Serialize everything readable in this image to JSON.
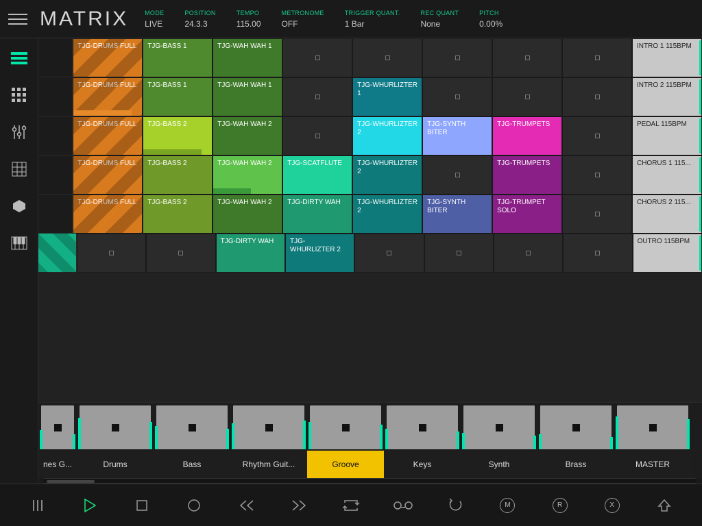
{
  "app_title": "MATRIX",
  "status": [
    {
      "label": "MODE",
      "value": "LIVE"
    },
    {
      "label": "POSITION",
      "value": "24.3.3"
    },
    {
      "label": "TEMPO",
      "value": "115.00"
    },
    {
      "label": "METRONOME",
      "value": "OFF"
    },
    {
      "label": "TRIGGER QUANT.",
      "value": "1 Bar"
    },
    {
      "label": "REC QUANT",
      "value": "None"
    },
    {
      "label": "PITCH",
      "value": "0.00%"
    }
  ],
  "accent": "#00e6a8",
  "scenes": [
    {
      "label": "INTRO 1 115BPM"
    },
    {
      "label": "INTRO 2 115BPM"
    },
    {
      "label": "PEDAL 115BPM"
    },
    {
      "label": "CHORUS 1 115..."
    },
    {
      "label": "CHORUS 2 115..."
    },
    {
      "label": "OUTRO 115BPM"
    }
  ],
  "colors": {
    "drums": "#d87a1e",
    "drums_dark": "#b25f10",
    "bass1": "#4f8a2f",
    "bass2": "#a6d12b",
    "bass2b": "#6f9a2a",
    "wah": "#3f7a2a",
    "wah_hi": "#5fc24a",
    "scat": "#1fd19a",
    "dirty": "#1f9a70",
    "whurl1": "#0f7a88",
    "whurl_cy": "#22d7e6",
    "whurl2": "#0f7a7a",
    "synth": "#8fa6ff",
    "synth2": "#4f5fa6",
    "trump": "#e32bb3",
    "trump2": "#8a1f88",
    "empty": "#343434",
    "scene_bg": "#c8c8c8",
    "groove_slot": "#13b085"
  },
  "grid": [
    [
      {
        "t": "TJG-DRUMS FULL",
        "c": "drums",
        "stripe": true
      },
      {
        "t": "TJG-BASS 1",
        "c": "bass1"
      },
      {
        "t": "TJG-WAH WAH 1",
        "c": "wah"
      },
      {
        "empty": true
      },
      {
        "empty": true
      },
      {
        "empty": true
      },
      {
        "empty": true
      },
      {
        "empty": true
      }
    ],
    [
      {
        "t": "TJG-DRUMS FULL",
        "c": "drums",
        "stripe": true,
        "bar": 0.85,
        "barColor": "#e68a2a"
      },
      {
        "t": "TJG-BASS 1",
        "c": "bass1"
      },
      {
        "t": "TJG-WAH WAH 1",
        "c": "wah"
      },
      {
        "empty": true
      },
      {
        "t": "TJG-WHURLIZTER 1",
        "c": "whurl1"
      },
      {
        "empty": true
      },
      {
        "empty": true
      },
      {
        "empty": true
      }
    ],
    [
      {
        "t": "TJG-DRUMS FULL",
        "c": "drums",
        "stripe": true
      },
      {
        "t": "TJG-BASS 2",
        "c": "bass2",
        "bar": 0.85,
        "barColor": "#7aa520"
      },
      {
        "t": "TJG-WAH WAH 2",
        "c": "wah"
      },
      {
        "empty": true
      },
      {
        "t": "TJG-WHURLIZTER 2",
        "c": "whurl_cy"
      },
      {
        "t": "TJG-SYNTH BITER",
        "c": "synth"
      },
      {
        "t": "TJG-TRUMPETS",
        "c": "trump"
      },
      {
        "empty": true
      }
    ],
    [
      {
        "t": "TJG-DRUMS FULL",
        "c": "drums",
        "stripe": true
      },
      {
        "t": "TJG-BASS 2",
        "c": "bass2b"
      },
      {
        "t": "TJG-WAH WAH 2",
        "c": "wah_hi",
        "bar": 0.55,
        "barColor": "#3a9a3a"
      },
      {
        "t": "TJG-SCATFLUTE",
        "c": "scat"
      },
      {
        "t": "TJG-WHURLIZTER 2",
        "c": "whurl2"
      },
      {
        "empty": true
      },
      {
        "t": "TJG-TRUMPETS",
        "c": "trump2"
      },
      {
        "empty": true
      }
    ],
    [
      {
        "t": "TJG-DRUMS FULL",
        "c": "drums",
        "stripe": true
      },
      {
        "t": "TJG-BASS 2",
        "c": "bass2b"
      },
      {
        "t": "TJG-WAH WAH 2",
        "c": "wah"
      },
      {
        "t": "TJG-DIRTY WAH",
        "c": "dirty"
      },
      {
        "t": "TJG-WHURLIZTER 2",
        "c": "whurl2"
      },
      {
        "t": "TJG-SYNTH BITER",
        "c": "synth2"
      },
      {
        "t": "TJG-TRUMPET SOLO",
        "c": "trump2"
      },
      {
        "empty": true
      }
    ],
    [
      {
        "slot": true
      },
      {
        "empty": true
      },
      {
        "empty": true
      },
      {
        "t": "TJG-DIRTY WAH",
        "c": "dirty"
      },
      {
        "t": "TJG-WHURLIZTER 2",
        "c": "whurl2"
      },
      {
        "empty": true
      },
      {
        "empty": true
      },
      {
        "empty": true
      }
    ]
  ],
  "channels": [
    {
      "name": "nes G...",
      "meter": [
        28,
        22
      ]
    },
    {
      "name": "Drums",
      "meter": [
        46,
        40
      ]
    },
    {
      "name": "Bass",
      "meter": [
        34,
        30
      ]
    },
    {
      "name": "Rhythm Guit...",
      "meter": [
        38,
        42
      ]
    },
    {
      "name": "Groove",
      "meter": [
        40,
        36
      ],
      "selected": true
    },
    {
      "name": "Keys",
      "meter": [
        30,
        26
      ]
    },
    {
      "name": "Synth",
      "meter": [
        24,
        20
      ]
    },
    {
      "name": "Brass",
      "meter": [
        22,
        18
      ]
    },
    {
      "name": "MASTER",
      "meter": [
        48,
        44
      ],
      "master": true
    }
  ],
  "channel_pad_left": 0,
  "transport_icons": [
    "menu",
    "play",
    "stop",
    "record",
    "rew",
    "ffw",
    "loop",
    "tape",
    "undo",
    "M",
    "R",
    "X",
    "up"
  ]
}
